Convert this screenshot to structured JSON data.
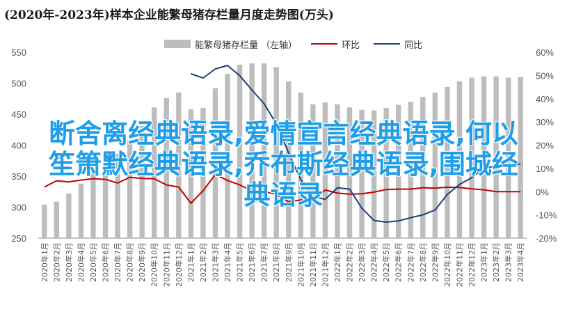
{
  "title": "(2020年-2023年)样本企业能繁母猪存栏量月度走势图(万头)",
  "legend": {
    "bars": "能繁母猪存栏量 （左轴）",
    "hb": "环比",
    "tb": "同比"
  },
  "overlay": {
    "line1": "断舍离经典语录,爱情宣言经典语录,何以",
    "line2": "笙箫默经典语录,乔布斯经典语录,围城经",
    "line3": "典语录"
  },
  "chart_data": {
    "type": "bar",
    "categories": [
      "2020年1月",
      "2020年2月",
      "2020年3月",
      "2020年4月",
      "2020年5月",
      "2020年6月",
      "2020年7月",
      "2020年8月",
      "2020年9月",
      "2020年10月",
      "2020年11月",
      "2020年12月",
      "2021年1月",
      "2021年2月",
      "2021年3月",
      "2021年4月",
      "2021年5月",
      "2021年6月",
      "2021年7月",
      "2021年8月",
      "2021年9月",
      "2021年10月",
      "2021年11月",
      "2021年12月",
      "2022年1月",
      "2022年2月",
      "2022年3月",
      "2022年4月",
      "2022年5月",
      "2022年6月",
      "2022年7月",
      "2022年8月",
      "2022年9月",
      "2022年10月",
      "2022年11月",
      "2022年12月",
      "2023年1月",
      "2023年2月",
      "2023年3月",
      "2023年4月"
    ],
    "series": [
      {
        "name": "能繁母猪存栏量 （左轴）",
        "axis": "left",
        "color": "#bdbdbd",
        "values": [
          304,
          309,
          322,
          338,
          354,
          370,
          386,
          407,
          431,
          461,
          476,
          485,
          458,
          460,
          492,
          515,
          530,
          532,
          532,
          526,
          503,
          485,
          466,
          469,
          466,
          461,
          457,
          456,
          460,
          465,
          470,
          478,
          485,
          494,
          503,
          509,
          511,
          511,
          509,
          510
        ]
      },
      {
        "name": "环比",
        "axis": "right",
        "color": "#c00000",
        "values": [
          2.0,
          4.7,
          4.2,
          5.0,
          5.6,
          5.3,
          3.7,
          6.2,
          5.7,
          5.6,
          2.9,
          2.0,
          -5.0,
          0.4,
          7.4,
          4.8,
          2.9,
          0.4,
          0.0,
          -1.1,
          -4.4,
          -3.6,
          -3.8,
          0.7,
          -0.6,
          -1.1,
          -0.9,
          -0.2,
          0.9,
          1.1,
          1.1,
          1.7,
          1.5,
          1.9,
          1.8,
          1.2,
          0.8,
          0.0,
          0.0,
          0.0
        ]
      },
      {
        "name": "同比",
        "axis": "right",
        "color": "#1f3f7a",
        "values": [
          null,
          null,
          null,
          null,
          null,
          null,
          null,
          null,
          null,
          null,
          null,
          null,
          50.7,
          48.9,
          52.8,
          54.3,
          49.9,
          43.8,
          37.8,
          29.2,
          16.7,
          5.2,
          -2.1,
          -3.3,
          1.7,
          1.1,
          -7.1,
          -12.4,
          -13.1,
          -12.6,
          -11.2,
          -10.0,
          -7.9,
          -1.2,
          3.1,
          6.0,
          10.1,
          11.0,
          10.7,
          12.0
        ]
      }
    ],
    "xlabel": "",
    "ylabel": "",
    "ylim_left": [
      250,
      550
    ],
    "yticks_left": [
      250,
      300,
      350,
      400,
      450,
      500,
      550
    ],
    "ylim_right": [
      -20,
      60
    ],
    "yticks_right": [
      "-20%",
      "-10%",
      "0%",
      "10%",
      "20%",
      "30%",
      "40%",
      "50%",
      "60%"
    ],
    "grid": false,
    "legend_position": "top"
  }
}
